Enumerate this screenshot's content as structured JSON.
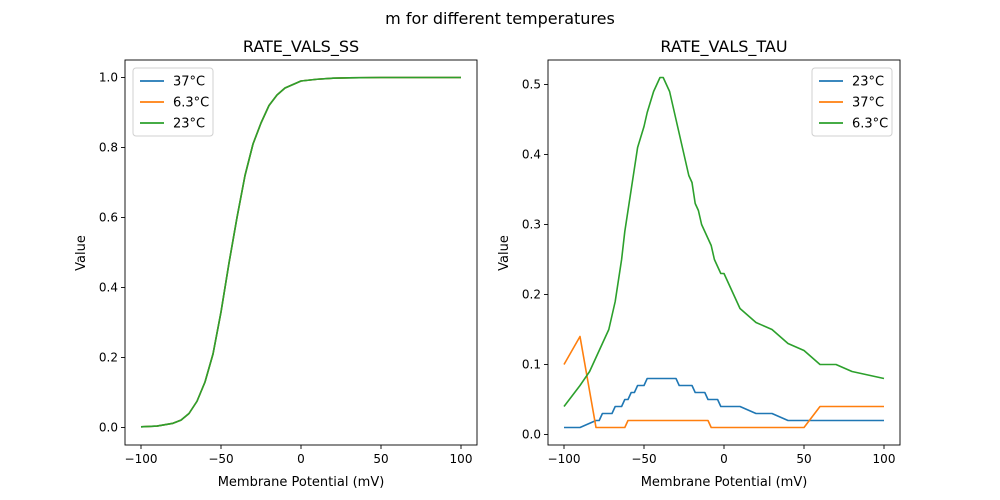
{
  "figure": {
    "title": "m for different temperatures"
  },
  "chart_data": [
    {
      "type": "line",
      "title": "RATE_VALS_SS",
      "xlabel": "Membrane Potential (mV)",
      "ylabel": "Value",
      "xlim": [
        -110,
        110
      ],
      "ylim": [
        -0.05,
        1.05
      ],
      "xticks": [
        -100,
        -50,
        0,
        50,
        100
      ],
      "yticks": [
        0.0,
        0.2,
        0.4,
        0.6,
        0.8,
        1.0
      ],
      "xtick_labels": [
        "−100",
        "−50",
        "0",
        "50",
        "100"
      ],
      "ytick_labels": [
        "0.0",
        "0.2",
        "0.4",
        "0.6",
        "0.8",
        "1.0"
      ],
      "grid": false,
      "legend_position": "top-left",
      "series": [
        {
          "name": "37°C",
          "color": "#1f77b4",
          "x": [
            -100,
            -90,
            -80,
            -75,
            -70,
            -65,
            -60,
            -55,
            -50,
            -45,
            -40,
            -35,
            -30,
            -25,
            -20,
            -15,
            -10,
            -5,
            0,
            10,
            20,
            30,
            50,
            100
          ],
          "y": [
            0.002,
            0.004,
            0.012,
            0.021,
            0.04,
            0.075,
            0.13,
            0.21,
            0.33,
            0.47,
            0.6,
            0.72,
            0.81,
            0.87,
            0.92,
            0.95,
            0.97,
            0.98,
            0.99,
            0.995,
            0.998,
            0.999,
            1.0,
            1.0
          ]
        },
        {
          "name": "6.3°C",
          "color": "#ff7f0e",
          "x": [
            -100,
            -90,
            -80,
            -75,
            -70,
            -65,
            -60,
            -55,
            -50,
            -45,
            -40,
            -35,
            -30,
            -25,
            -20,
            -15,
            -10,
            -5,
            0,
            10,
            20,
            30,
            50,
            100
          ],
          "y": [
            0.002,
            0.004,
            0.012,
            0.021,
            0.04,
            0.075,
            0.13,
            0.21,
            0.33,
            0.47,
            0.6,
            0.72,
            0.81,
            0.87,
            0.92,
            0.95,
            0.97,
            0.98,
            0.99,
            0.995,
            0.998,
            0.999,
            1.0,
            1.0
          ]
        },
        {
          "name": "23°C",
          "color": "#2ca02c",
          "x": [
            -100,
            -90,
            -80,
            -75,
            -70,
            -65,
            -60,
            -55,
            -50,
            -45,
            -40,
            -35,
            -30,
            -25,
            -20,
            -15,
            -10,
            -5,
            0,
            10,
            20,
            30,
            50,
            100
          ],
          "y": [
            0.002,
            0.004,
            0.012,
            0.021,
            0.04,
            0.075,
            0.13,
            0.21,
            0.33,
            0.47,
            0.6,
            0.72,
            0.81,
            0.87,
            0.92,
            0.95,
            0.97,
            0.98,
            0.99,
            0.995,
            0.998,
            0.999,
            1.0,
            1.0
          ]
        }
      ]
    },
    {
      "type": "line",
      "title": "RATE_VALS_TAU",
      "xlabel": "Membrane Potential (mV)",
      "ylabel": "Value",
      "xlim": [
        -110,
        110
      ],
      "ylim": [
        -0.015,
        0.535
      ],
      "xticks": [
        -100,
        -50,
        0,
        50,
        100
      ],
      "yticks": [
        0.0,
        0.1,
        0.2,
        0.3,
        0.4,
        0.5
      ],
      "xtick_labels": [
        "−100",
        "−50",
        "0",
        "50",
        "100"
      ],
      "ytick_labels": [
        "0.0",
        "0.1",
        "0.2",
        "0.3",
        "0.4",
        "0.5"
      ],
      "grid": false,
      "legend_position": "top-right",
      "series": [
        {
          "name": "23°C",
          "color": "#1f77b4",
          "x": [
            -100,
            -90,
            -80,
            -78,
            -76,
            -74,
            -70,
            -68,
            -66,
            -64,
            -62,
            -60,
            -58,
            -56,
            -54,
            -52,
            -50,
            -48,
            -46,
            -44,
            -30,
            -28,
            -26,
            -20,
            -18,
            -16,
            -12,
            -10,
            -4,
            -2,
            0,
            10,
            20,
            30,
            40,
            50,
            100
          ],
          "y": [
            0.01,
            0.01,
            0.02,
            0.02,
            0.03,
            0.03,
            0.03,
            0.04,
            0.04,
            0.04,
            0.05,
            0.05,
            0.06,
            0.06,
            0.07,
            0.07,
            0.07,
            0.08,
            0.08,
            0.08,
            0.08,
            0.07,
            0.07,
            0.07,
            0.06,
            0.06,
            0.06,
            0.05,
            0.05,
            0.04,
            0.04,
            0.04,
            0.03,
            0.03,
            0.02,
            0.02,
            0.02
          ]
        },
        {
          "name": "37°C",
          "color": "#ff7f0e",
          "x": [
            -100,
            -90,
            -80,
            -62,
            -60,
            -10,
            -8,
            50,
            60,
            100
          ],
          "y": [
            0.1,
            0.14,
            0.01,
            0.01,
            0.02,
            0.02,
            0.01,
            0.01,
            0.04,
            0.04
          ]
        },
        {
          "name": "6.3°C",
          "color": "#2ca02c",
          "x": [
            -100,
            -90,
            -84,
            -80,
            -76,
            -72,
            -68,
            -64,
            -62,
            -58,
            -54,
            -50,
            -48,
            -44,
            -42,
            -40,
            -38,
            -36,
            -34,
            -32,
            -30,
            -28,
            -26,
            -24,
            -22,
            -20,
            -18,
            -16,
            -14,
            -12,
            -10,
            -8,
            -6,
            -4,
            -2,
            0,
            2,
            4,
            6,
            10,
            20,
            30,
            40,
            50,
            60,
            70,
            80,
            100
          ],
          "y": [
            0.04,
            0.07,
            0.09,
            0.11,
            0.13,
            0.15,
            0.19,
            0.25,
            0.29,
            0.35,
            0.41,
            0.44,
            0.46,
            0.49,
            0.5,
            0.51,
            0.51,
            0.5,
            0.49,
            0.47,
            0.45,
            0.43,
            0.41,
            0.39,
            0.37,
            0.36,
            0.33,
            0.32,
            0.3,
            0.29,
            0.28,
            0.27,
            0.25,
            0.24,
            0.23,
            0.23,
            0.22,
            0.21,
            0.2,
            0.18,
            0.16,
            0.15,
            0.13,
            0.12,
            0.1,
            0.1,
            0.09,
            0.08
          ]
        }
      ]
    }
  ]
}
